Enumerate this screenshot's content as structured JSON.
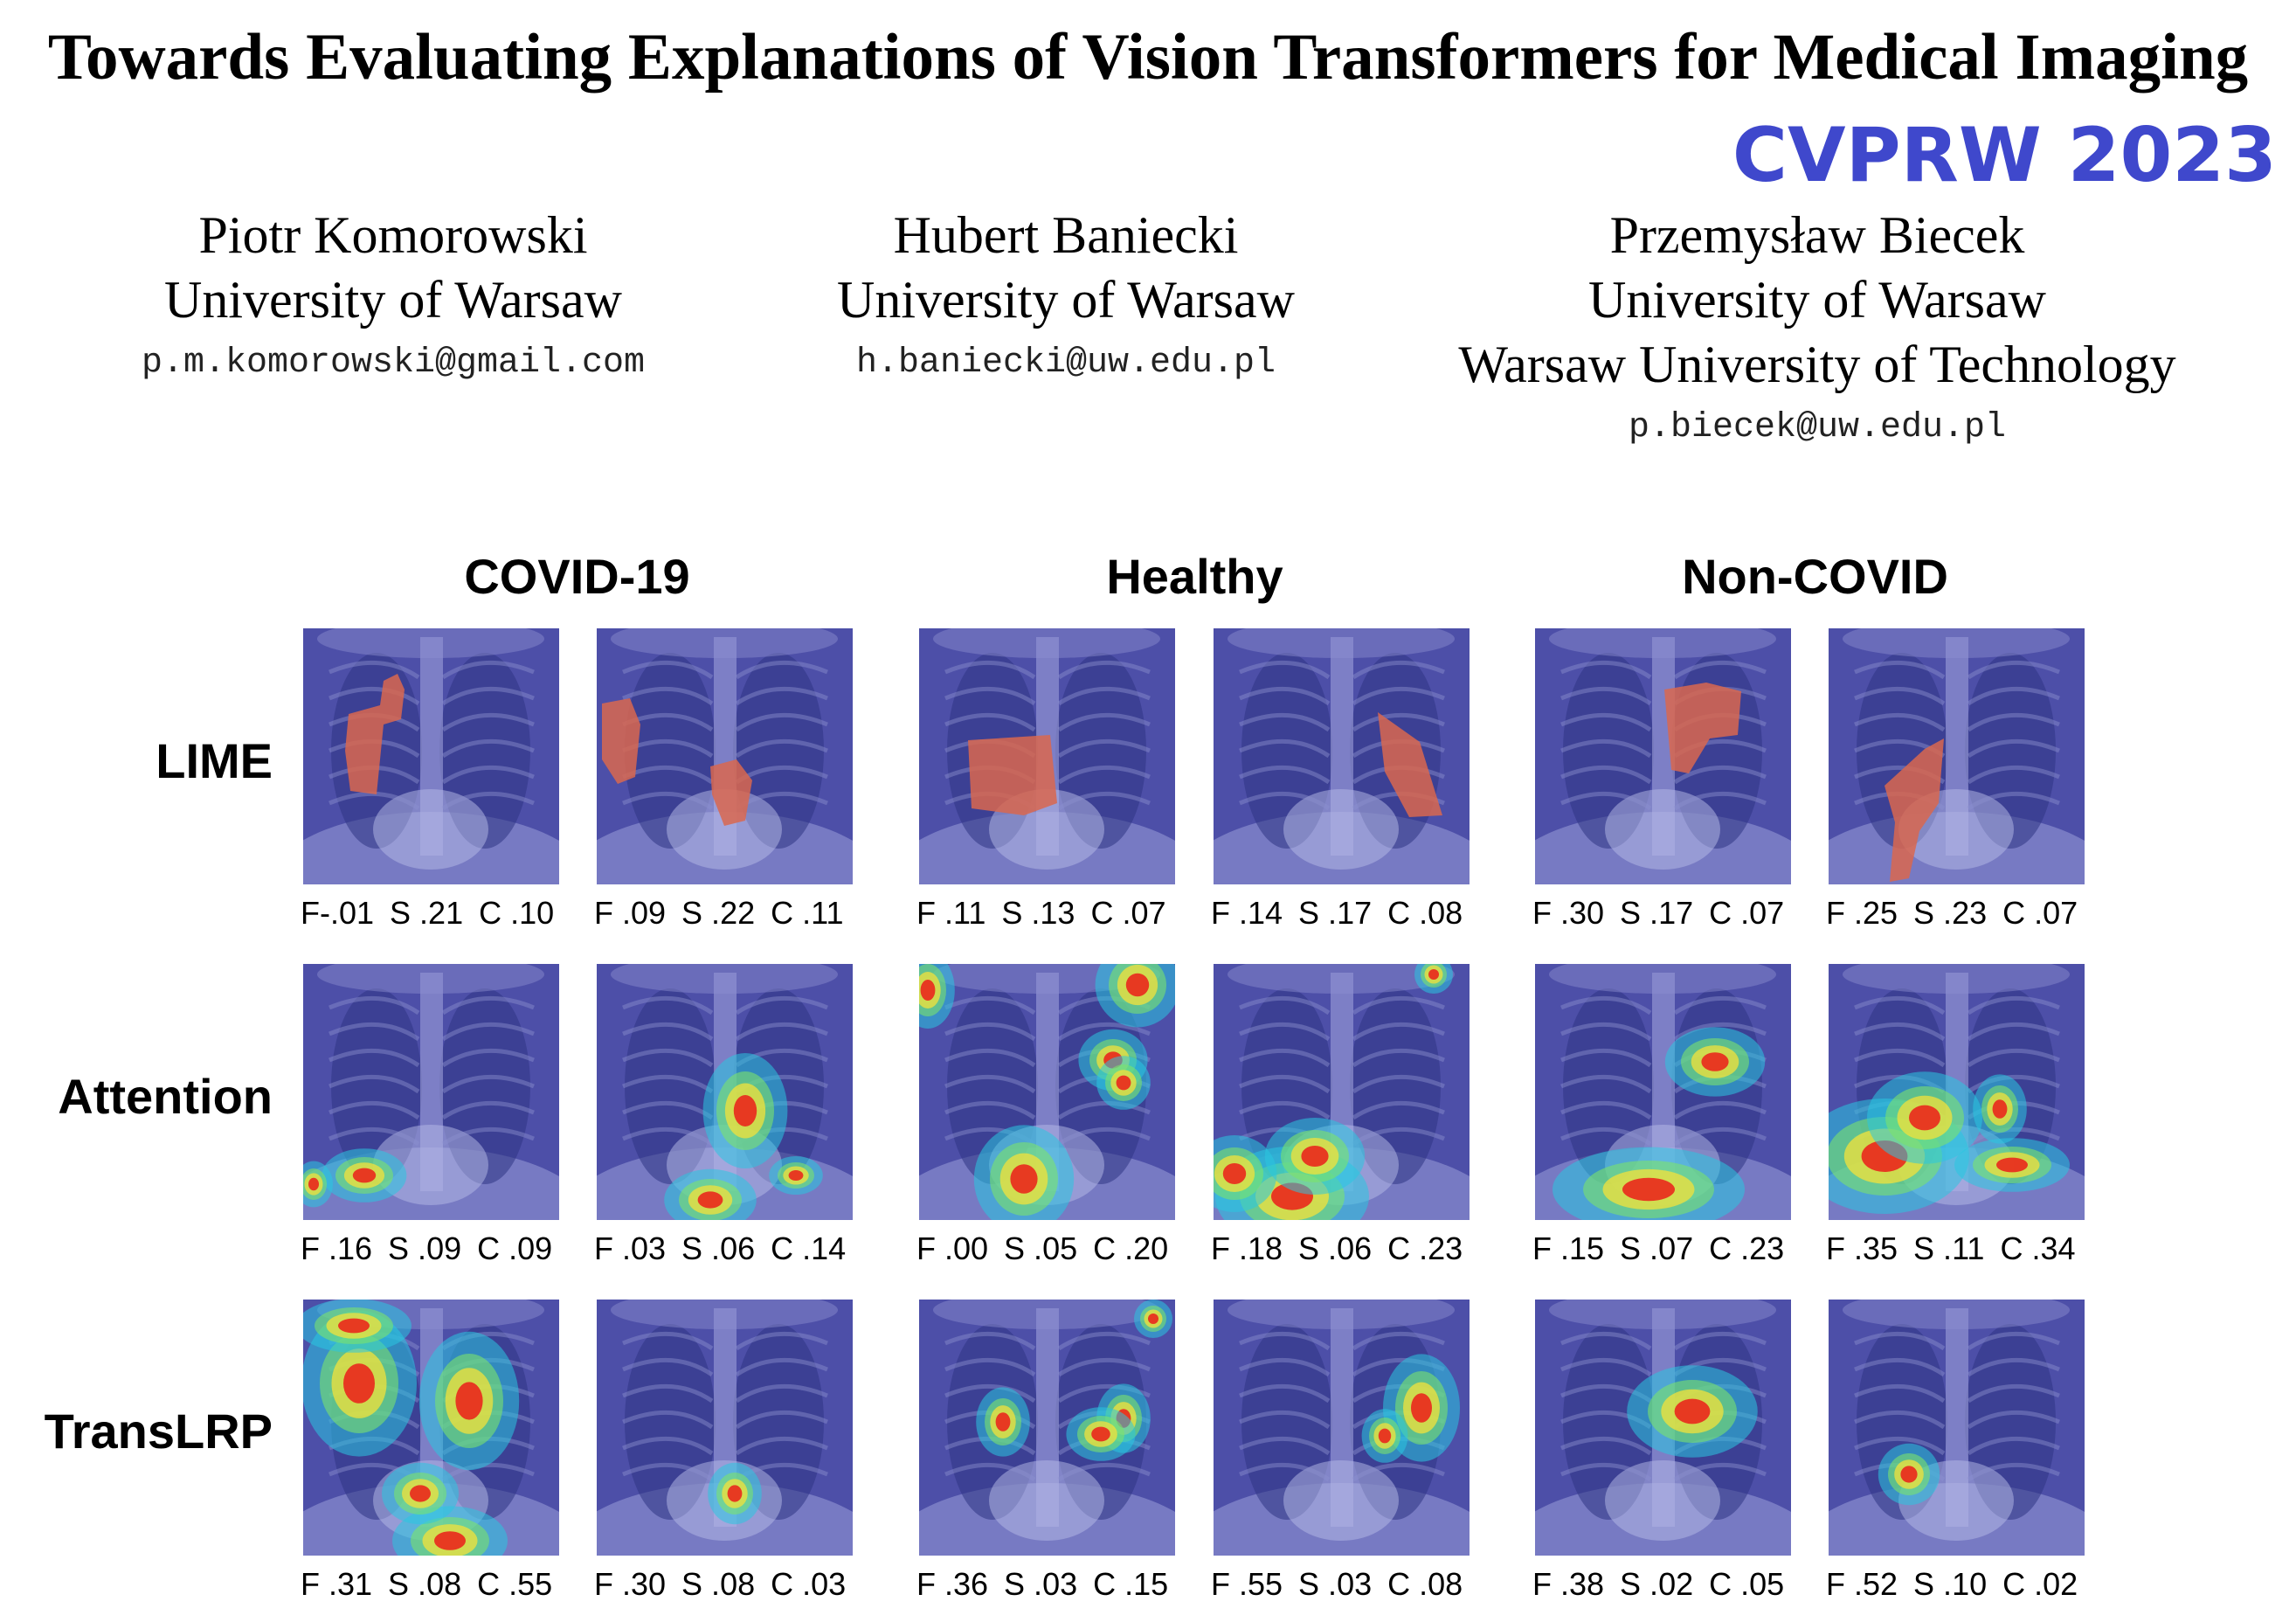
{
  "paper": {
    "title": "Towards Evaluating Explanations of Vision Transformers for Medical Imaging",
    "venue": "CVPRW 2023",
    "authors": [
      {
        "name": "Piotr Komorowski",
        "affiliations": [
          "University of Warsaw"
        ],
        "email": "p.m.komorowski@gmail.com"
      },
      {
        "name": "Hubert Baniecki",
        "affiliations": [
          "University of Warsaw"
        ],
        "email": "h.baniecki@uw.edu.pl"
      },
      {
        "name": "Przemysław Biecek",
        "affiliations": [
          "University of Warsaw",
          "Warsaw University of Technology"
        ],
        "email": "p.biecek@uw.edu.pl"
      }
    ]
  },
  "figure": {
    "groups": [
      "COVID-19",
      "Healthy",
      "Non-COVID"
    ],
    "methods": [
      "LIME",
      "Attention",
      "TransLRP"
    ],
    "panel_label": "chest X-ray with explanation overlay",
    "scores": [
      [
        [
          "F-.01",
          "S .21",
          "C .10"
        ],
        [
          "F .09",
          "S .22",
          "C .11"
        ],
        [
          "F .11",
          "S .13",
          "C .07"
        ],
        [
          "F .14",
          "S .17",
          "C .08"
        ],
        [
          "F .30",
          "S .17",
          "C .07"
        ],
        [
          "F .25",
          "S .23",
          "C .07"
        ]
      ],
      [
        [
          "F .16",
          "S .09",
          "C .09"
        ],
        [
          "F .03",
          "S .06",
          "C .14"
        ],
        [
          "F .00",
          "S .05",
          "C .20"
        ],
        [
          "F .18",
          "S .06",
          "C .23"
        ],
        [
          "F .15",
          "S .07",
          "C .23"
        ],
        [
          "F .35",
          "S .11",
          "C .34"
        ]
      ],
      [
        [
          "F .31",
          "S .08",
          "C .55"
        ],
        [
          "F .30",
          "S .08",
          "C .03"
        ],
        [
          "F .36",
          "S .03",
          "C .15"
        ],
        [
          "F .55",
          "S .03",
          "C .08"
        ],
        [
          "F .38",
          "S .02",
          "C .05"
        ],
        [
          "F .52",
          "S .10",
          "C .02"
        ]
      ]
    ]
  },
  "colors": {
    "venue": "#3f48cc",
    "xray_base": "#4d4fa8",
    "lime_region": "#d9674f",
    "heat_hot": "#e8301f",
    "heat_cool": "#29c6e0"
  }
}
